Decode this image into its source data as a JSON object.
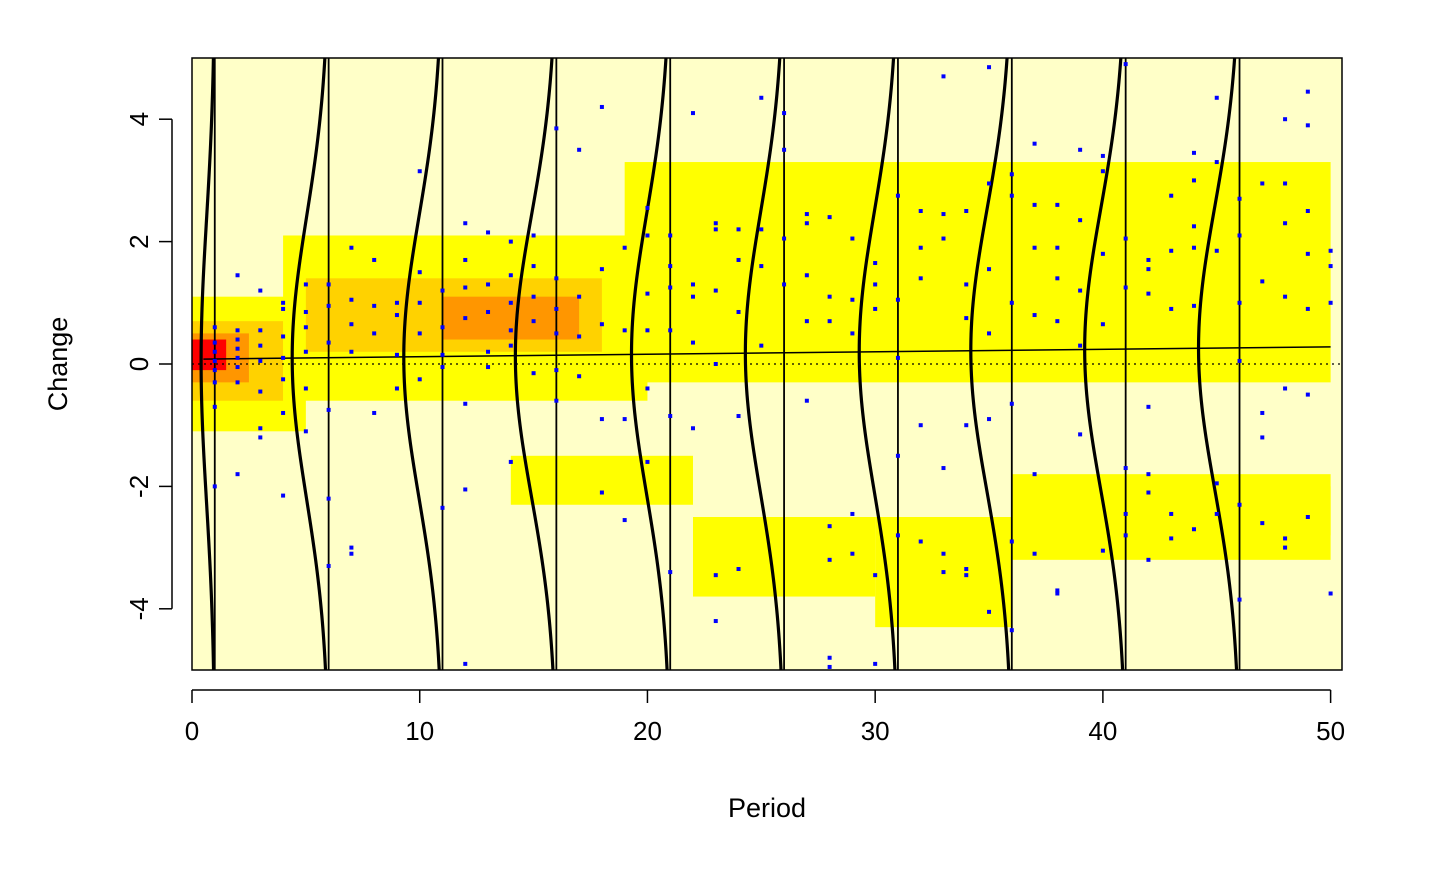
{
  "chart_data": {
    "type": "heatmap",
    "xlabel": "Period",
    "ylabel": "Change",
    "xlim": [
      0,
      50.5
    ],
    "ylim": [
      -5,
      5
    ],
    "x_ticks": [
      0,
      10,
      20,
      30,
      40,
      50
    ],
    "x_tick_labels": [
      "0",
      "10",
      "20",
      "30",
      "40",
      "50"
    ],
    "y_ticks": [
      -4,
      -2,
      0,
      2,
      4
    ],
    "y_tick_labels": [
      "-4",
      "-2",
      "0",
      "2",
      "4"
    ],
    "grid": false,
    "legend": "none",
    "colors": {
      "background": "#ffffc8",
      "low_density": "#ffff00",
      "mid_density": "#ffd200",
      "high_density": "#ff9600",
      "peak_density": "#ff0000",
      "points": "#0000ff",
      "lines": "#000000"
    },
    "density_bands": [
      {
        "x": [
          0,
          5
        ],
        "y": [
          -1.1,
          1.1
        ],
        "level": 1
      },
      {
        "x": [
          0,
          4
        ],
        "y": [
          -0.6,
          0.7
        ],
        "level": 2
      },
      {
        "x": [
          0,
          2.5
        ],
        "y": [
          -0.3,
          0.5
        ],
        "level": 3
      },
      {
        "x": [
          0,
          1.5
        ],
        "y": [
          -0.1,
          0.4
        ],
        "level": 4
      },
      {
        "x": [
          4,
          20
        ],
        "y": [
          -0.6,
          2.1
        ],
        "level": 1
      },
      {
        "x": [
          5,
          18
        ],
        "y": [
          0.2,
          1.4
        ],
        "level": 2
      },
      {
        "x": [
          11,
          17
        ],
        "y": [
          0.4,
          1.1
        ],
        "level": 3
      },
      {
        "x": [
          19,
          50
        ],
        "y": [
          -0.3,
          3.3
        ],
        "level": 1
      },
      {
        "x": [
          14,
          22
        ],
        "y": [
          -2.3,
          -1.5
        ],
        "level": 1
      },
      {
        "x": [
          22,
          30
        ],
        "y": [
          -3.8,
          -2.5
        ],
        "level": 1
      },
      {
        "x": [
          30,
          36
        ],
        "y": [
          -4.3,
          -2.5
        ],
        "level": 1
      },
      {
        "x": [
          36,
          50
        ],
        "y": [
          -3.2,
          -1.8
        ],
        "level": 1
      },
      {
        "x": [
          42,
          50
        ],
        "y": [
          -2.8,
          -2.0
        ],
        "level": 1
      }
    ],
    "vertical_lines": [
      1,
      6,
      11,
      16,
      21,
      26,
      31,
      36,
      41,
      46
    ],
    "density_curves": {
      "x_positions": [
        1,
        6,
        11,
        16,
        21,
        26,
        31,
        36,
        41,
        46
      ],
      "peak_offsets": [
        0.6,
        1.6,
        1.7,
        1.8,
        1.7,
        1.7,
        1.7,
        1.8,
        1.8,
        1.8
      ],
      "centers": [
        0.05,
        0.1,
        0.11,
        0.13,
        0.16,
        0.18,
        0.2,
        0.22,
        0.24,
        0.26
      ],
      "sd": 2.3
    },
    "regression_line": {
      "x": [
        0.5,
        50
      ],
      "y": [
        0.08,
        0.28
      ]
    },
    "reference_line": {
      "y": 0,
      "style": "dotted"
    },
    "points": [
      [
        1,
        0.05
      ],
      [
        1,
        0.2
      ],
      [
        1,
        -0.1
      ],
      [
        1,
        0.35
      ],
      [
        1,
        -0.3
      ],
      [
        1,
        0.6
      ],
      [
        1,
        -0.7
      ],
      [
        1,
        -2.0
      ],
      [
        2,
        0.1
      ],
      [
        2,
        0.25
      ],
      [
        2,
        0.4
      ],
      [
        2,
        -0.05
      ],
      [
        2,
        -0.3
      ],
      [
        2,
        1.45
      ],
      [
        2,
        -1.8
      ],
      [
        2,
        0.55
      ],
      [
        3,
        0.05
      ],
      [
        3,
        0.3
      ],
      [
        3,
        -0.45
      ],
      [
        3,
        0.55
      ],
      [
        3,
        1.2
      ],
      [
        3,
        -1.05
      ],
      [
        3,
        -1.2
      ],
      [
        4,
        0.45
      ],
      [
        4,
        0.9
      ],
      [
        4,
        -0.25
      ],
      [
        4,
        -0.8
      ],
      [
        4,
        1.0
      ],
      [
        4,
        -2.15
      ],
      [
        4,
        0.1
      ],
      [
        5,
        0.6
      ],
      [
        5,
        -0.4
      ],
      [
        5,
        1.3
      ],
      [
        5,
        -1.1
      ],
      [
        5,
        0.2
      ],
      [
        5,
        0.85
      ],
      [
        6,
        0.95
      ],
      [
        6,
        0.35
      ],
      [
        6,
        -0.75
      ],
      [
        6,
        1.3
      ],
      [
        6,
        -3.3
      ],
      [
        6,
        -2.2
      ],
      [
        7,
        0.65
      ],
      [
        7,
        0.2
      ],
      [
        7,
        1.9
      ],
      [
        7,
        -3.0
      ],
      [
        7,
        -3.1
      ],
      [
        7,
        1.05
      ],
      [
        8,
        0.95
      ],
      [
        8,
        0.5
      ],
      [
        8,
        1.7
      ],
      [
        8,
        -0.8
      ],
      [
        9,
        1.0
      ],
      [
        9,
        -0.4
      ],
      [
        9,
        0.15
      ],
      [
        9,
        0.8
      ],
      [
        10,
        1.5
      ],
      [
        10,
        0.5
      ],
      [
        10,
        3.15
      ],
      [
        10,
        -0.25
      ],
      [
        10,
        1.0
      ],
      [
        11,
        0.15
      ],
      [
        11,
        1.2
      ],
      [
        11,
        -0.05
      ],
      [
        11,
        -2.35
      ],
      [
        11,
        0.6
      ],
      [
        12,
        1.7
      ],
      [
        12,
        0.75
      ],
      [
        12,
        2.3
      ],
      [
        12,
        -0.65
      ],
      [
        12,
        -2.05
      ],
      [
        12,
        1.25
      ],
      [
        12,
        -4.9
      ],
      [
        13,
        1.3
      ],
      [
        13,
        0.2
      ],
      [
        13,
        2.15
      ],
      [
        13,
        -0.05
      ],
      [
        13,
        0.85
      ],
      [
        14,
        1.45
      ],
      [
        14,
        1.0
      ],
      [
        14,
        0.55
      ],
      [
        14,
        2.0
      ],
      [
        14,
        -1.6
      ],
      [
        14,
        0.3
      ],
      [
        15,
        1.6
      ],
      [
        15,
        0.7
      ],
      [
        15,
        -0.15
      ],
      [
        15,
        2.1
      ],
      [
        15,
        1.1
      ],
      [
        16,
        0.9
      ],
      [
        16,
        0.5
      ],
      [
        16,
        1.4
      ],
      [
        16,
        -0.6
      ],
      [
        16,
        3.85
      ],
      [
        16,
        -0.1
      ],
      [
        17,
        0.45
      ],
      [
        17,
        1.1
      ],
      [
        17,
        -0.2
      ],
      [
        17,
        3.5
      ],
      [
        18,
        1.55
      ],
      [
        18,
        0.65
      ],
      [
        18,
        4.2
      ],
      [
        18,
        -0.9
      ],
      [
        18,
        -2.1
      ],
      [
        19,
        0.55
      ],
      [
        19,
        -0.9
      ],
      [
        19,
        1.9
      ],
      [
        19,
        -2.55
      ],
      [
        20,
        1.15
      ],
      [
        20,
        0.55
      ],
      [
        20,
        2.1
      ],
      [
        20,
        -0.4
      ],
      [
        20,
        2.55
      ],
      [
        20,
        -1.6
      ],
      [
        21,
        1.25
      ],
      [
        21,
        0.55
      ],
      [
        21,
        2.1
      ],
      [
        21,
        -0.85
      ],
      [
        21,
        -3.4
      ],
      [
        21,
        1.6
      ],
      [
        22,
        1.1
      ],
      [
        22,
        0.35
      ],
      [
        22,
        4.1
      ],
      [
        22,
        -1.05
      ],
      [
        22,
        1.3
      ],
      [
        23,
        2.2
      ],
      [
        23,
        1.2
      ],
      [
        23,
        0.0
      ],
      [
        23,
        -3.45
      ],
      [
        23,
        -4.2
      ],
      [
        23,
        2.3
      ],
      [
        24,
        2.2
      ],
      [
        24,
        1.7
      ],
      [
        24,
        -0.85
      ],
      [
        24,
        -3.35
      ],
      [
        24,
        0.85
      ],
      [
        25,
        2.2
      ],
      [
        25,
        1.6
      ],
      [
        25,
        4.35
      ],
      [
        25,
        0.3
      ],
      [
        26,
        2.05
      ],
      [
        26,
        1.3
      ],
      [
        26,
        3.5
      ],
      [
        26,
        4.1
      ],
      [
        27,
        2.3
      ],
      [
        27,
        1.45
      ],
      [
        27,
        0.7
      ],
      [
        27,
        -0.6
      ],
      [
        27,
        2.45
      ],
      [
        28,
        2.4
      ],
      [
        28,
        1.1
      ],
      [
        28,
        0.7
      ],
      [
        28,
        -2.65
      ],
      [
        28,
        -3.2
      ],
      [
        28,
        -4.8
      ],
      [
        28,
        -4.95
      ],
      [
        29,
        1.05
      ],
      [
        29,
        2.05
      ],
      [
        29,
        -2.45
      ],
      [
        29,
        -3.1
      ],
      [
        29,
        0.5
      ],
      [
        30,
        1.65
      ],
      [
        30,
        0.9
      ],
      [
        30,
        -3.45
      ],
      [
        30,
        -4.9
      ],
      [
        30,
        1.3
      ],
      [
        31,
        2.75
      ],
      [
        31,
        1.05
      ],
      [
        31,
        0.1
      ],
      [
        31,
        -1.5
      ],
      [
        31,
        -2.8
      ],
      [
        32,
        2.5
      ],
      [
        32,
        1.4
      ],
      [
        32,
        -1.0
      ],
      [
        32,
        -2.9
      ],
      [
        32,
        1.9
      ],
      [
        33,
        4.7
      ],
      [
        33,
        2.45
      ],
      [
        33,
        2.05
      ],
      [
        33,
        -1.7
      ],
      [
        33,
        -3.4
      ],
      [
        33,
        -3.1
      ],
      [
        34,
        2.5
      ],
      [
        34,
        1.3
      ],
      [
        34,
        0.75
      ],
      [
        34,
        -1.0
      ],
      [
        34,
        -3.45
      ],
      [
        34,
        -3.35
      ],
      [
        35,
        4.85
      ],
      [
        35,
        2.95
      ],
      [
        35,
        1.55
      ],
      [
        35,
        0.5
      ],
      [
        35,
        -0.9
      ],
      [
        35,
        -4.05
      ],
      [
        36,
        3.1
      ],
      [
        36,
        2.75
      ],
      [
        36,
        1.0
      ],
      [
        36,
        -0.65
      ],
      [
        36,
        -2.9
      ],
      [
        36,
        -4.35
      ],
      [
        37,
        3.6
      ],
      [
        37,
        2.6
      ],
      [
        37,
        1.9
      ],
      [
        37,
        0.8
      ],
      [
        37,
        -1.8
      ],
      [
        37,
        -3.1
      ],
      [
        38,
        2.6
      ],
      [
        38,
        1.4
      ],
      [
        38,
        0.7
      ],
      [
        38,
        -3.7
      ],
      [
        38,
        -3.75
      ],
      [
        38,
        1.9
      ],
      [
        39,
        3.5
      ],
      [
        39,
        2.35
      ],
      [
        39,
        1.2
      ],
      [
        39,
        0.3
      ],
      [
        39,
        -1.15
      ],
      [
        40,
        3.15
      ],
      [
        40,
        1.8
      ],
      [
        40,
        0.65
      ],
      [
        40,
        -3.05
      ],
      [
        40,
        3.4
      ],
      [
        41,
        4.9
      ],
      [
        41,
        2.05
      ],
      [
        41,
        1.25
      ],
      [
        41,
        -2.45
      ],
      [
        41,
        -2.8
      ],
      [
        41,
        -1.7
      ],
      [
        42,
        1.7
      ],
      [
        42,
        1.55
      ],
      [
        42,
        1.15
      ],
      [
        42,
        -0.7
      ],
      [
        42,
        -1.8
      ],
      [
        42,
        -2.1
      ],
      [
        42,
        -3.2
      ],
      [
        43,
        2.75
      ],
      [
        43,
        1.85
      ],
      [
        43,
        0.9
      ],
      [
        43,
        -2.45
      ],
      [
        43,
        -2.85
      ],
      [
        44,
        3.45
      ],
      [
        44,
        3.0
      ],
      [
        44,
        2.25
      ],
      [
        44,
        1.9
      ],
      [
        44,
        0.95
      ],
      [
        44,
        -2.7
      ],
      [
        45,
        4.35
      ],
      [
        45,
        3.3
      ],
      [
        45,
        1.85
      ],
      [
        45,
        -1.95
      ],
      [
        45,
        -2.45
      ],
      [
        46,
        2.7
      ],
      [
        46,
        2.1
      ],
      [
        46,
        1.0
      ],
      [
        46,
        0.05
      ],
      [
        46,
        -2.3
      ],
      [
        46,
        -3.85
      ],
      [
        47,
        2.95
      ],
      [
        47,
        1.35
      ],
      [
        47,
        -0.8
      ],
      [
        47,
        -1.2
      ],
      [
        47,
        -2.6
      ],
      [
        48,
        2.95
      ],
      [
        48,
        2.3
      ],
      [
        48,
        1.1
      ],
      [
        48,
        -0.4
      ],
      [
        48,
        -2.85
      ],
      [
        48,
        -3.0
      ],
      [
        48,
        4.0
      ],
      [
        49,
        3.9
      ],
      [
        49,
        4.45
      ],
      [
        49,
        2.5
      ],
      [
        49,
        1.8
      ],
      [
        49,
        0.9
      ],
      [
        49,
        -0.5
      ],
      [
        49,
        -2.5
      ],
      [
        50,
        1.6
      ],
      [
        50,
        1.85
      ],
      [
        50,
        1.0
      ],
      [
        50,
        -3.75
      ]
    ]
  }
}
